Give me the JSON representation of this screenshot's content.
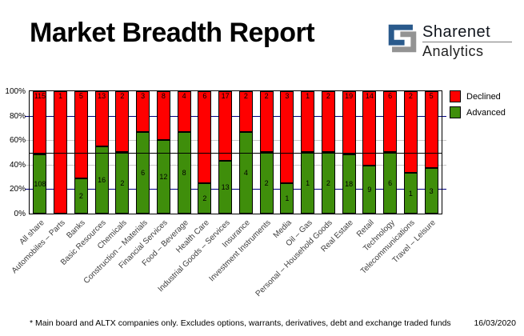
{
  "header": {
    "title": "Market Breadth Report",
    "logo": {
      "brand": "Sharenet",
      "sub": "Analytics",
      "icon_blue": "#2A5A8C",
      "icon_gray": "#939393"
    }
  },
  "chart_data": {
    "type": "bar",
    "stacked": true,
    "percent_stacked": true,
    "title": "Market Breadth Report",
    "categories": [
      "All share",
      "Automobiles – Parts",
      "Banks",
      "Basic Resources",
      "Chemicals",
      "Construction – Materials",
      "Financial Services",
      "Food – Beverage",
      "Health Care",
      "Industrial Goods – Services",
      "Insurance",
      "Investment Instruments",
      "Media",
      "Oil – Gas",
      "Personal – Household Goods",
      "Real Estate",
      "Retail",
      "Technology",
      "Telecommunications",
      "Travel – Leisure"
    ],
    "series": [
      {
        "name": "Declined",
        "color": "#FF0000",
        "values": [
          115,
          1,
          5,
          13,
          2,
          3,
          8,
          4,
          6,
          17,
          2,
          2,
          3,
          1,
          2,
          19,
          14,
          6,
          2,
          5
        ]
      },
      {
        "name": "Advanced",
        "color": "#3F8E0B",
        "values": [
          108,
          0,
          2,
          16,
          2,
          6,
          12,
          8,
          2,
          13,
          4,
          2,
          1,
          1,
          2,
          18,
          9,
          6,
          1,
          3
        ]
      }
    ],
    "ylim": [
      0,
      100
    ],
    "y_ticks": [
      "0%",
      "20%",
      "40%",
      "60%",
      "80%",
      "100%"
    ],
    "gridlines": {
      "navy_levels": [
        20,
        80
      ],
      "gray_levels": [
        40,
        60
      ],
      "navy_color": "#000080",
      "gray_color": "#C8C8C8"
    },
    "reference_line": {
      "level": 50,
      "color": "#000000"
    },
    "legend": {
      "position": "top-right",
      "entries": [
        "Declined",
        "Advanced"
      ]
    },
    "bar_value_labels": true
  },
  "footer": {
    "note": "* Main board and ALTX companies only. Excludes options, warrants, derivatives, debt and exchange traded funds",
    "date": "16/03/2020"
  }
}
